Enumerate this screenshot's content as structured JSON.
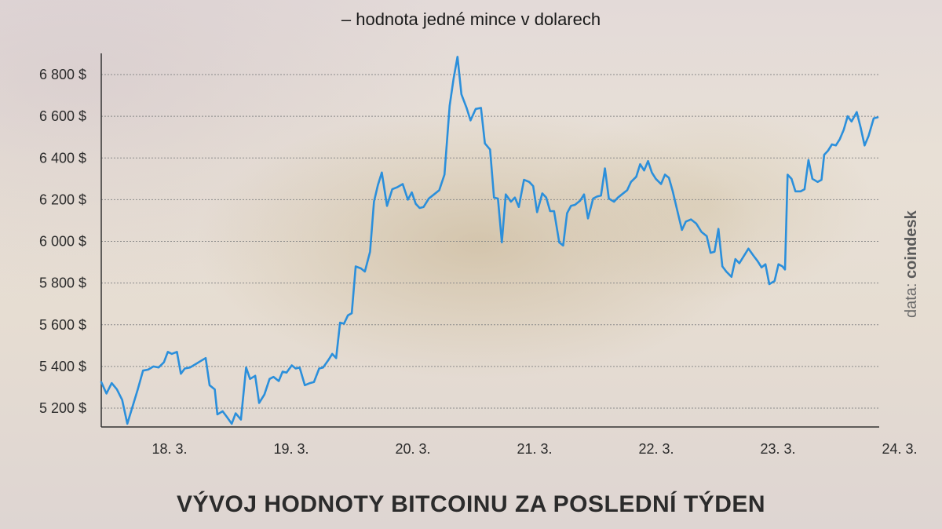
{
  "subtitle": "– hodnota jedné mince v dolarech",
  "title": "VÝVOJ HODNOTY BITCOINU ZA POSLEDNÍ TÝDEN",
  "source_prefix": "data: ",
  "source_name": "coindesk",
  "colors": {
    "line": "#2b8fdb",
    "grid": "#8a8a8a",
    "axis": "#333333"
  },
  "chart_data": {
    "type": "line",
    "title": "VÝVOJ HODNOTY BITCOINU ZA POSLEDNÍ TÝDEN",
    "subtitle": "– hodnota jedné mince v dolarech",
    "xlabel": "",
    "ylabel": "",
    "ylim": [
      5120,
      6950
    ],
    "xlim": [
      17.55,
      24.45
    ],
    "grid": true,
    "y_ticks": [
      5200,
      5400,
      5600,
      5800,
      6000,
      6200,
      6400,
      6600,
      6800
    ],
    "y_tick_labels": [
      "5 200 $",
      "5 400 $",
      "5 600 $",
      "5 800 $",
      "6 000 $",
      "6 200 $",
      "6 400 $",
      "6 600 $",
      "6 800 $"
    ],
    "x_ticks": [
      18,
      19,
      20,
      21,
      22,
      23,
      24
    ],
    "x_tick_labels": [
      "18. 3.",
      "19. 3.",
      "20. 3.",
      "21. 3.",
      "22. 3.",
      "23. 3.",
      "24. 3."
    ],
    "series": [
      {
        "values": [
          [
            17.55,
            5325
          ],
          [
            17.59,
            5270
          ],
          [
            17.63,
            5320
          ],
          [
            17.67,
            5290
          ],
          [
            17.71,
            5240
          ],
          [
            17.75,
            5125
          ],
          [
            17.83,
            5290
          ],
          [
            17.87,
            5380
          ],
          [
            17.91,
            5385
          ],
          [
            17.95,
            5400
          ],
          [
            17.99,
            5395
          ],
          [
            18.03,
            5420
          ],
          [
            18.06,
            5470
          ],
          [
            18.09,
            5460
          ],
          [
            18.13,
            5470
          ],
          [
            18.16,
            5365
          ],
          [
            18.19,
            5390
          ],
          [
            18.23,
            5395
          ],
          [
            18.27,
            5410
          ],
          [
            18.31,
            5425
          ],
          [
            18.35,
            5440
          ],
          [
            18.38,
            5310
          ],
          [
            18.42,
            5290
          ],
          [
            18.44,
            5170
          ],
          [
            18.48,
            5185
          ],
          [
            18.51,
            5160
          ],
          [
            18.55,
            5125
          ],
          [
            18.58,
            5175
          ],
          [
            18.62,
            5145
          ],
          [
            18.66,
            5395
          ],
          [
            18.69,
            5340
          ],
          [
            18.73,
            5355
          ],
          [
            18.76,
            5225
          ],
          [
            18.8,
            5265
          ],
          [
            18.84,
            5340
          ],
          [
            18.87,
            5350
          ],
          [
            18.91,
            5330
          ],
          [
            18.94,
            5375
          ],
          [
            18.97,
            5370
          ],
          [
            19.01,
            5405
          ],
          [
            19.04,
            5390
          ],
          [
            19.07,
            5395
          ],
          [
            19.11,
            5310
          ],
          [
            19.15,
            5320
          ],
          [
            19.18,
            5325
          ],
          [
            19.22,
            5390
          ],
          [
            19.25,
            5395
          ],
          [
            19.29,
            5430
          ],
          [
            19.32,
            5460
          ],
          [
            19.35,
            5440
          ],
          [
            19.38,
            5610
          ],
          [
            19.41,
            5605
          ],
          [
            19.44,
            5645
          ],
          [
            19.47,
            5655
          ],
          [
            19.5,
            5880
          ],
          [
            19.54,
            5870
          ],
          [
            19.57,
            5855
          ],
          [
            19.61,
            5950
          ],
          [
            19.64,
            6190
          ],
          [
            19.67,
            6270
          ],
          [
            19.7,
            6330
          ],
          [
            19.74,
            6170
          ],
          [
            19.78,
            6250
          ],
          [
            19.82,
            6260
          ],
          [
            19.86,
            6275
          ],
          [
            19.9,
            6200
          ],
          [
            19.93,
            6235
          ],
          [
            19.96,
            6180
          ],
          [
            19.99,
            6160
          ],
          [
            20.02,
            6165
          ],
          [
            20.06,
            6205
          ],
          [
            20.1,
            6225
          ],
          [
            20.14,
            6245
          ],
          [
            20.18,
            6320
          ],
          [
            20.22,
            6650
          ],
          [
            20.25,
            6780
          ],
          [
            20.28,
            6885
          ],
          [
            20.31,
            6705
          ],
          [
            20.35,
            6640
          ],
          [
            20.38,
            6580
          ],
          [
            20.42,
            6635
          ],
          [
            20.46,
            6640
          ],
          [
            20.49,
            6470
          ],
          [
            20.53,
            6440
          ],
          [
            20.56,
            6210
          ],
          [
            20.59,
            6205
          ],
          [
            20.62,
            5995
          ],
          [
            20.65,
            6225
          ],
          [
            20.69,
            6190
          ],
          [
            20.72,
            6210
          ],
          [
            20.75,
            6165
          ],
          [
            20.79,
            6295
          ],
          [
            20.83,
            6285
          ],
          [
            20.86,
            6265
          ],
          [
            20.89,
            6140
          ],
          [
            20.93,
            6230
          ],
          [
            20.96,
            6210
          ],
          [
            20.99,
            6145
          ],
          [
            21.02,
            6145
          ],
          [
            21.06,
            5995
          ],
          [
            21.09,
            5980
          ],
          [
            21.12,
            6135
          ],
          [
            21.15,
            6170
          ],
          [
            21.18,
            6175
          ],
          [
            21.22,
            6195
          ],
          [
            21.25,
            6225
          ],
          [
            21.28,
            6110
          ],
          [
            21.32,
            6205
          ],
          [
            21.35,
            6215
          ],
          [
            21.38,
            6220
          ],
          [
            21.41,
            6350
          ],
          [
            21.44,
            6205
          ],
          [
            21.48,
            6190
          ],
          [
            21.51,
            6210
          ],
          [
            21.54,
            6225
          ],
          [
            21.58,
            6245
          ],
          [
            21.61,
            6285
          ],
          [
            21.65,
            6310
          ],
          [
            21.68,
            6370
          ],
          [
            21.71,
            6340
          ],
          [
            21.74,
            6385
          ],
          [
            21.77,
            6330
          ],
          [
            21.8,
            6300
          ],
          [
            21.84,
            6275
          ],
          [
            21.87,
            6320
          ],
          [
            21.9,
            6305
          ],
          [
            21.93,
            6240
          ],
          [
            21.96,
            6160
          ],
          [
            22.0,
            6055
          ],
          [
            22.03,
            6095
          ],
          [
            22.07,
            6105
          ],
          [
            22.11,
            6085
          ],
          [
            22.15,
            6045
          ],
          [
            22.19,
            6025
          ],
          [
            22.22,
            5945
          ],
          [
            22.25,
            5950
          ],
          [
            22.28,
            6060
          ],
          [
            22.31,
            5880
          ],
          [
            22.34,
            5855
          ],
          [
            22.38,
            5830
          ],
          [
            22.41,
            5915
          ],
          [
            22.44,
            5895
          ],
          [
            22.47,
            5925
          ],
          [
            22.51,
            5965
          ],
          [
            22.55,
            5930
          ],
          [
            22.58,
            5905
          ],
          [
            22.61,
            5875
          ],
          [
            22.64,
            5890
          ],
          [
            22.67,
            5795
          ],
          [
            22.71,
            5810
          ],
          [
            22.74,
            5890
          ],
          [
            22.77,
            5880
          ],
          [
            22.79,
            5865
          ],
          [
            22.81,
            6320
          ],
          [
            22.84,
            6300
          ],
          [
            22.87,
            6240
          ],
          [
            22.91,
            6240
          ],
          [
            22.94,
            6250
          ],
          [
            22.97,
            6390
          ],
          [
            23.0,
            6300
          ],
          [
            23.04,
            6285
          ],
          [
            23.07,
            6295
          ],
          [
            23.09,
            6415
          ],
          [
            23.12,
            6435
          ],
          [
            23.15,
            6465
          ],
          [
            23.18,
            6460
          ],
          [
            23.21,
            6490
          ],
          [
            23.24,
            6535
          ],
          [
            23.27,
            6600
          ],
          [
            23.3,
            6575
          ],
          [
            23.34,
            6620
          ],
          [
            23.37,
            6545
          ],
          [
            23.4,
            6460
          ],
          [
            23.43,
            6505
          ],
          [
            23.47,
            6590
          ],
          [
            23.5,
            6595
          ]
        ]
      }
    ]
  }
}
